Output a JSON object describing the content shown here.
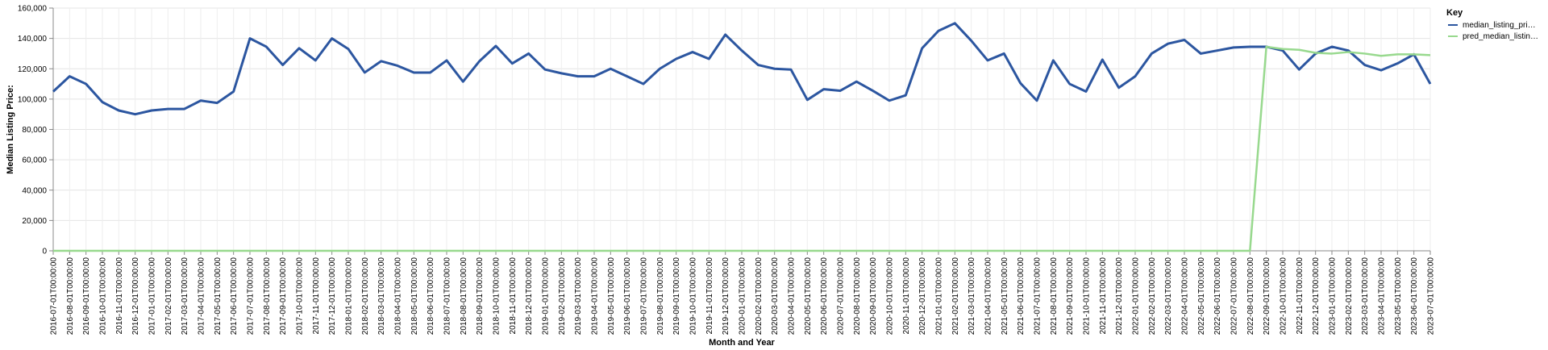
{
  "chart_data": {
    "type": "line",
    "xlabel": "Month and Year",
    "ylabel": "Median Listing Price:",
    "ylim": [
      0,
      160000
    ],
    "yticks": [
      "0",
      "20,000",
      "40,000",
      "60,000",
      "80,000",
      "100,000",
      "120,000",
      "140,000",
      "160,000"
    ],
    "grid": true,
    "legend": {
      "title": "Key",
      "placement": "top-right"
    },
    "x": [
      "2016-07-01T00:00:00",
      "2016-08-01T00:00:00",
      "2016-09-01T00:00:00",
      "2016-10-01T00:00:00",
      "2016-11-01T00:00:00",
      "2016-12-01T00:00:00",
      "2017-01-01T00:00:00",
      "2017-02-01T00:00:00",
      "2017-03-01T00:00:00",
      "2017-04-01T00:00:00",
      "2017-05-01T00:00:00",
      "2017-06-01T00:00:00",
      "2017-07-01T00:00:00",
      "2017-08-01T00:00:00",
      "2017-09-01T00:00:00",
      "2017-10-01T00:00:00",
      "2017-11-01T00:00:00",
      "2017-12-01T00:00:00",
      "2018-01-01T00:00:00",
      "2018-02-01T00:00:00",
      "2018-03-01T00:00:00",
      "2018-04-01T00:00:00",
      "2018-05-01T00:00:00",
      "2018-06-01T00:00:00",
      "2018-07-01T00:00:00",
      "2018-08-01T00:00:00",
      "2018-09-01T00:00:00",
      "2018-10-01T00:00:00",
      "2018-11-01T00:00:00",
      "2018-12-01T00:00:00",
      "2019-01-01T00:00:00",
      "2019-02-01T00:00:00",
      "2019-03-01T00:00:00",
      "2019-04-01T00:00:00",
      "2019-05-01T00:00:00",
      "2019-06-01T00:00:00",
      "2019-07-01T00:00:00",
      "2019-08-01T00:00:00",
      "2019-09-01T00:00:00",
      "2019-10-01T00:00:00",
      "2019-11-01T00:00:00",
      "2019-12-01T00:00:00",
      "2020-01-01T00:00:00",
      "2020-02-01T00:00:00",
      "2020-03-01T00:00:00",
      "2020-04-01T00:00:00",
      "2020-05-01T00:00:00",
      "2020-06-01T00:00:00",
      "2020-07-01T00:00:00",
      "2020-08-01T00:00:00",
      "2020-09-01T00:00:00",
      "2020-10-01T00:00:00",
      "2020-11-01T00:00:00",
      "2020-12-01T00:00:00",
      "2021-01-01T00:00:00",
      "2021-02-01T00:00:00",
      "2021-03-01T00:00:00",
      "2021-04-01T00:00:00",
      "2021-05-01T00:00:00",
      "2021-06-01T00:00:00",
      "2021-07-01T00:00:00",
      "2021-08-01T00:00:00",
      "2021-09-01T00:00:00",
      "2021-10-01T00:00:00",
      "2021-11-01T00:00:00",
      "2021-12-01T00:00:00",
      "2022-01-01T00:00:00",
      "2022-02-01T00:00:00",
      "2022-03-01T00:00:00",
      "2022-04-01T00:00:00",
      "2022-05-01T00:00:00",
      "2022-06-01T00:00:00",
      "2022-07-01T00:00:00",
      "2022-08-01T00:00:00",
      "2022-09-01T00:00:00",
      "2022-10-01T00:00:00",
      "2022-11-01T00:00:00",
      "2022-12-01T00:00:00",
      "2023-01-01T00:00:00",
      "2023-02-01T00:00:00",
      "2023-03-01T00:00:00",
      "2023-04-01T00:00:00",
      "2023-05-01T00:00:00",
      "2023-06-01T00:00:00",
      "2023-07-01T00:00:00"
    ],
    "series": [
      {
        "name": "median_listing_pri…",
        "color": "#2c56a0",
        "values": [
          105000,
          115000,
          110000,
          98000,
          92500,
          90000,
          92500,
          93500,
          93500,
          99000,
          97500,
          105000,
          140000,
          134500,
          122500,
          133500,
          125500,
          140000,
          133000,
          117500,
          125000,
          122000,
          117500,
          117500,
          125500,
          111500,
          125000,
          135000,
          123500,
          130000,
          119500,
          117000,
          115000,
          115000,
          120000,
          115000,
          110000,
          120000,
          126500,
          131000,
          126500,
          142500,
          132000,
          122500,
          120000,
          119500,
          99500,
          106500,
          105500,
          111500,
          105500,
          99000,
          102500,
          133500,
          145000,
          150000,
          138500,
          125500,
          130000,
          110500,
          99000,
          125500,
          110000,
          105000,
          126000,
          107500,
          115000,
          130000,
          136500,
          139000,
          130000,
          132000,
          134000,
          134500,
          134500,
          132000,
          119500,
          130000,
          134500,
          132000,
          122500,
          119000,
          123500,
          129500,
          110000
        ]
      },
      {
        "name": "pred_median_listin…",
        "color": "#98d98e",
        "values": [
          0,
          0,
          0,
          0,
          0,
          0,
          0,
          0,
          0,
          0,
          0,
          0,
          0,
          0,
          0,
          0,
          0,
          0,
          0,
          0,
          0,
          0,
          0,
          0,
          0,
          0,
          0,
          0,
          0,
          0,
          0,
          0,
          0,
          0,
          0,
          0,
          0,
          0,
          0,
          0,
          0,
          0,
          0,
          0,
          0,
          0,
          0,
          0,
          0,
          0,
          0,
          0,
          0,
          0,
          0,
          0,
          0,
          0,
          0,
          0,
          0,
          0,
          0,
          0,
          0,
          0,
          0,
          0,
          0,
          0,
          0,
          0,
          0,
          0,
          134500,
          133000,
          132500,
          130500,
          130000,
          131000,
          130000,
          128500,
          129500,
          129500,
          129000
        ]
      }
    ]
  }
}
